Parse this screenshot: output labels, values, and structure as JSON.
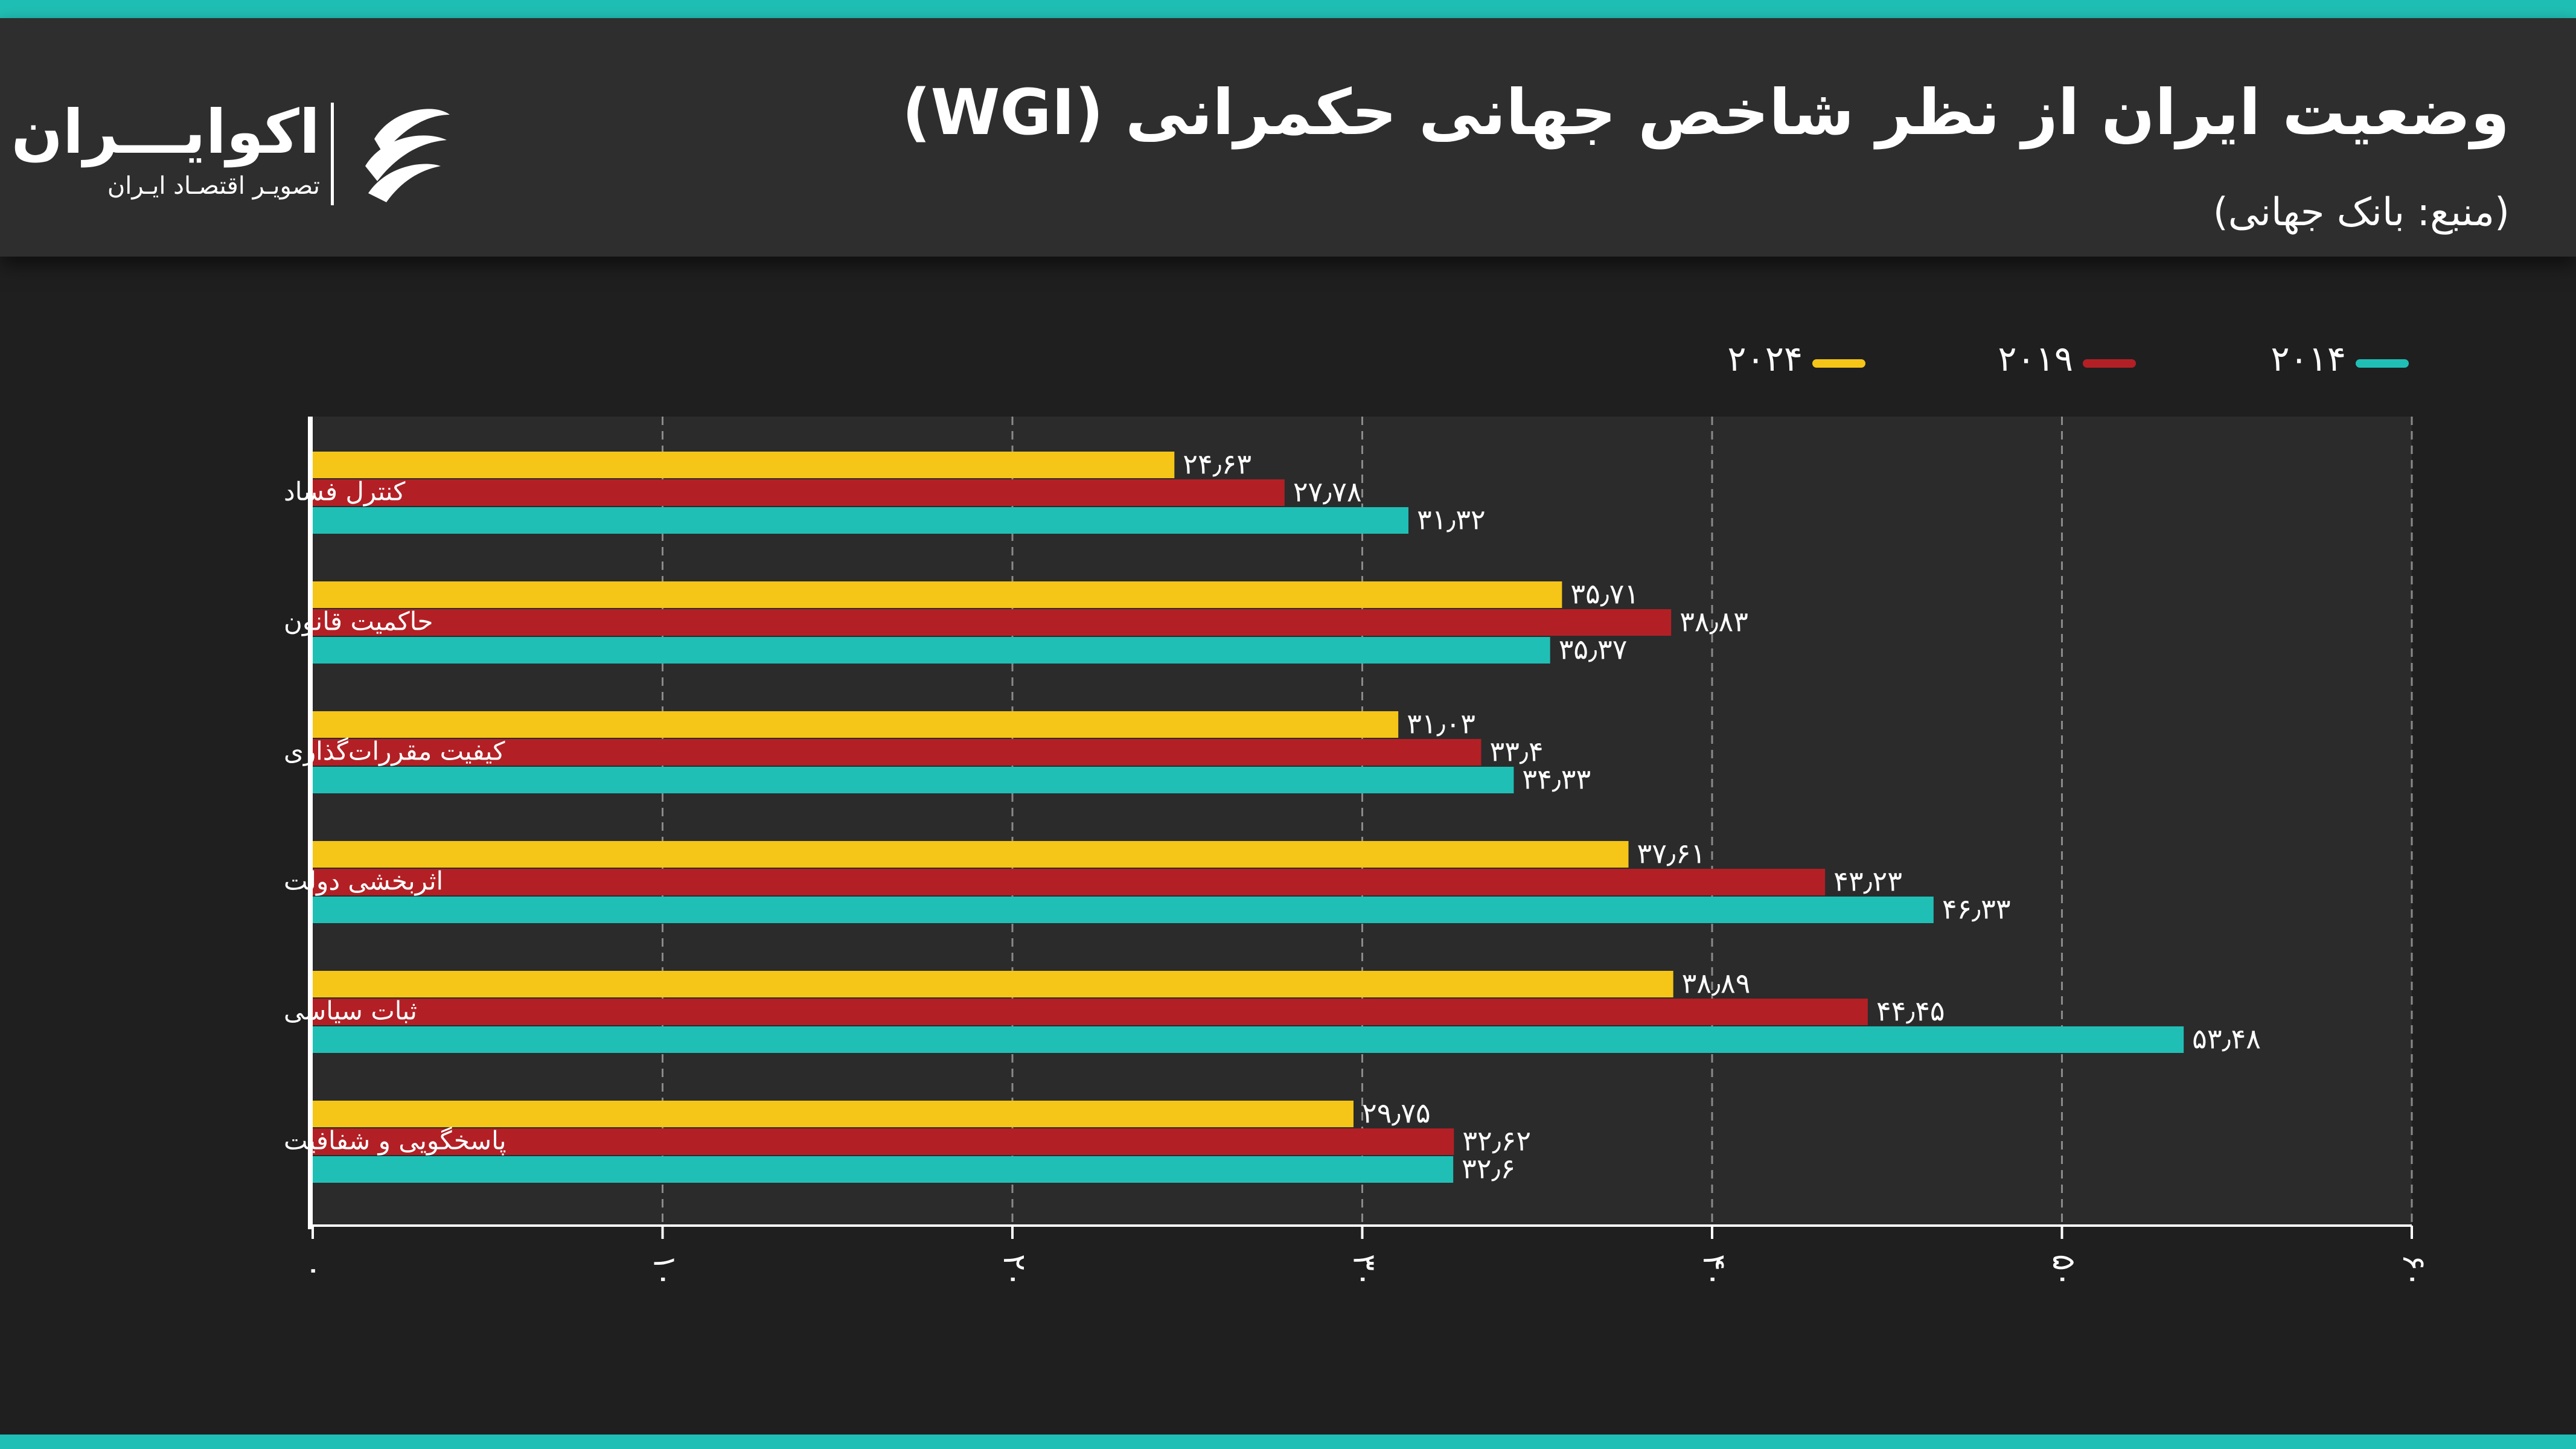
{
  "header": {
    "title": "وضعیت ایران از نظر شاخص جهانی حکمرانی (WGI)",
    "source": "(منبع: بانک جهانی)"
  },
  "brand": {
    "name": "اکوایـــران",
    "tagline": "تصویـر اقتصـاد ایـران",
    "icon": "ecoiran-logo-icon"
  },
  "colors": {
    "background": "#1f1f20",
    "header_background": "#2e2e2f",
    "plot_background": "#2b2b2c",
    "accent_strip": "#20bfb5",
    "series_2024": "#f5c518",
    "series_2019": "#b22025",
    "series_2014": "#20bfb5"
  },
  "legend": [
    {
      "label": "۲۰۲۴",
      "color": "#f5c518"
    },
    {
      "label": "۲۰۱۹",
      "color": "#b22025"
    },
    {
      "label": "۲۰۱۴",
      "color": "#20bfb5"
    }
  ],
  "chart_data": {
    "type": "bar",
    "orientation": "horizontal",
    "categories": [
      "کنترل فساد",
      "حاکمیت قانون",
      "کیفیت مقررات‌گذاری",
      "اثربخشی دولت",
      "ثبات سیاسی",
      "پاسخگویی و شفافیت"
    ],
    "series": [
      {
        "name": "۲۰۲۴",
        "color": "#f5c518",
        "values": [
          24.63,
          35.71,
          31.03,
          37.61,
          38.89,
          29.75
        ],
        "labels": [
          "۲۴٫۶۳",
          "۳۵٫۷۱",
          "۳۱٫۰۳",
          "۳۷٫۶۱",
          "۳۸٫۸۹",
          "۲۹٫۷۵"
        ]
      },
      {
        "name": "۲۰۱۹",
        "color": "#b22025",
        "values": [
          27.78,
          38.83,
          33.4,
          43.23,
          44.45,
          32.62
        ],
        "labels": [
          "۲۷٫۷۸",
          "۳۸٫۸۳",
          "۳۳٫۴",
          "۴۳٫۲۳",
          "۴۴٫۴۵",
          "۳۲٫۶۲"
        ]
      },
      {
        "name": "۲۰۱۴",
        "color": "#20bfb5",
        "values": [
          31.32,
          35.37,
          34.33,
          46.33,
          53.48,
          32.6
        ],
        "labels": [
          "۳۱٫۳۲",
          "۳۵٫۳۷",
          "۳۴٫۳۳",
          "۴۶٫۳۳",
          "۵۳٫۴۸",
          "۳۲٫۶"
        ]
      }
    ],
    "xlim": [
      0,
      60
    ],
    "xticks": [
      0,
      10,
      20,
      30,
      40,
      50,
      60
    ],
    "xtick_labels": [
      "۰",
      "۱۰",
      "۲۰",
      "۳۰",
      "۴۰",
      "۵۰",
      "۶۰"
    ],
    "grid": "vertical dashed",
    "legend_position": "top-right",
    "title": "",
    "xlabel": "",
    "ylabel": ""
  }
}
